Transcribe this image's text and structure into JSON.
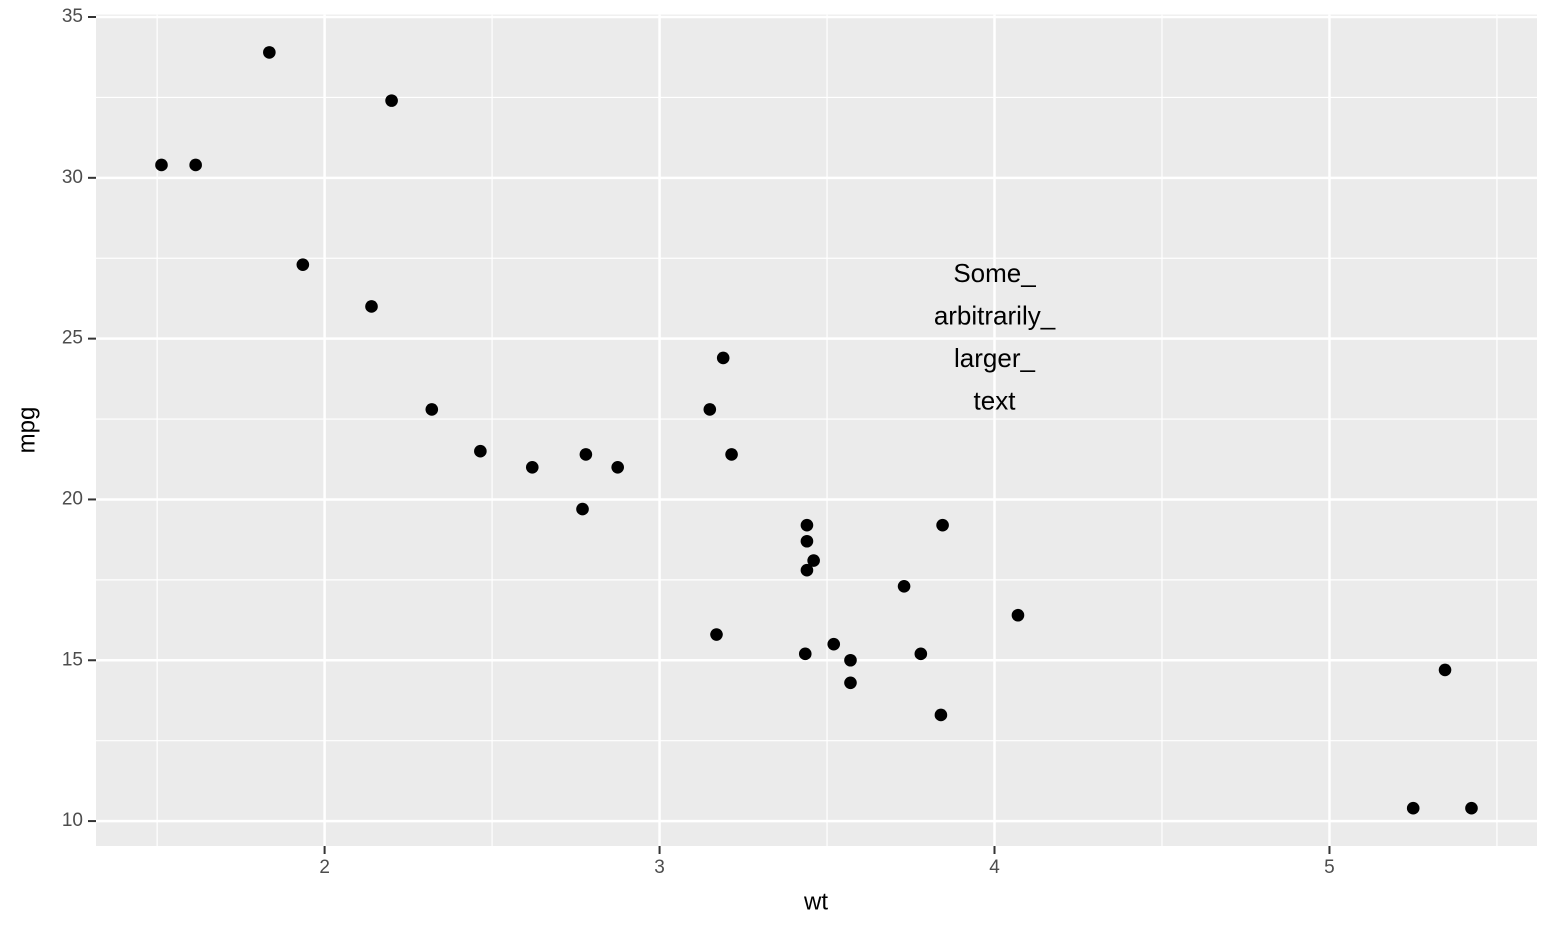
{
  "chart_data": {
    "type": "scatter",
    "x_label": "wt",
    "y_label": "mpg",
    "x": [
      2.62,
      2.875,
      2.32,
      3.215,
      3.44,
      3.46,
      3.57,
      3.19,
      3.15,
      3.44,
      3.44,
      4.07,
      3.73,
      3.78,
      5.25,
      5.424,
      5.345,
      2.2,
      1.615,
      1.835,
      2.465,
      3.52,
      3.435,
      3.84,
      3.845,
      1.935,
      2.14,
      1.513,
      3.17,
      2.77,
      3.57,
      2.78
    ],
    "values": [
      21.0,
      21.0,
      22.8,
      21.4,
      18.7,
      18.1,
      14.3,
      24.4,
      22.8,
      19.2,
      17.8,
      16.4,
      17.3,
      15.2,
      10.4,
      10.4,
      14.7,
      32.4,
      30.4,
      33.9,
      21.5,
      15.5,
      15.2,
      13.3,
      19.2,
      27.3,
      26.0,
      30.4,
      15.8,
      19.7,
      15.0,
      21.4
    ],
    "color": "#000000",
    "xlim": [
      1.3175,
      5.6196
    ],
    "ylim": [
      9.225,
      35.075
    ],
    "xticks": [
      2,
      3,
      4,
      5
    ],
    "yticks": [
      10,
      15,
      20,
      25,
      30,
      35
    ],
    "x_minor_breaks": [
      1.5,
      2.5,
      3.5,
      4.5,
      5.5
    ],
    "y_minor_breaks": [
      12.5,
      17.5,
      22.5,
      27.5,
      32.5
    ],
    "grid": true,
    "annotation": {
      "x": 4,
      "y": 25,
      "lines": [
        "Some_",
        "arbitrarily_",
        "larger_",
        "text"
      ]
    }
  }
}
